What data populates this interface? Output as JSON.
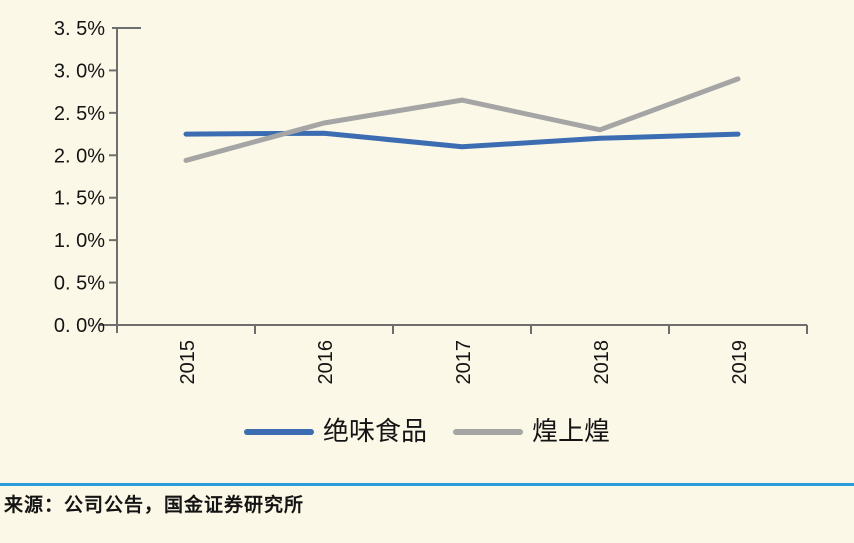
{
  "chart_data": {
    "type": "line",
    "title": "",
    "xlabel": "",
    "ylabel": "",
    "categories": [
      "2015",
      "2016",
      "2017",
      "2018",
      "2019"
    ],
    "series": [
      {
        "name": "绝味食品",
        "color": "#3C6DB3",
        "values": [
          2.25,
          2.26,
          2.1,
          2.2,
          2.25
        ]
      },
      {
        "name": "煌上煌",
        "color": "#A5A5A5",
        "values": [
          1.94,
          2.38,
          2.65,
          2.3,
          2.9
        ]
      }
    ],
    "ylim": [
      0,
      3.5
    ],
    "ytick_step": 0.5,
    "ytick_labels": [
      "0. 0%",
      "0. 5%",
      "1. 0%",
      "1. 5%",
      "2. 0%",
      "2. 5%",
      "3. 0%",
      "3. 5%"
    ],
    "grid": false,
    "legend_position": "bottom"
  },
  "footer": {
    "source": "来源：公司公告，国金证券研究所"
  },
  "style": {
    "background": "#FCF8E7",
    "axis_color": "#6E6E6E",
    "text_color": "#141414",
    "separator_color": "#2B9CD9"
  }
}
